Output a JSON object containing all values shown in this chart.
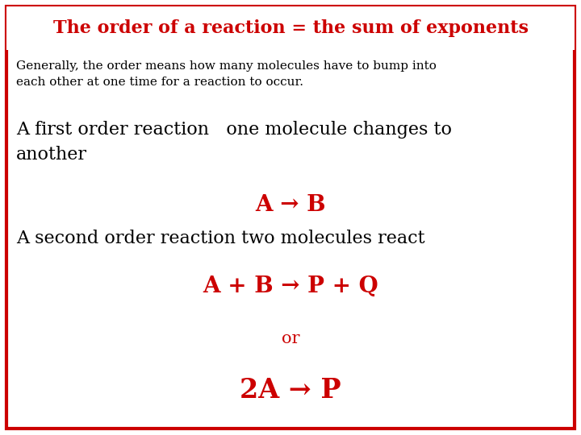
{
  "title": "The order of a reaction = the sum of exponents",
  "title_color": "#cc0000",
  "border_color": "#cc0000",
  "bg_color": "#ffffff",
  "subtitle": "Generally, the order means how many molecules have to bump into\neach other at one time for a reaction to occur.",
  "subtitle_color": "#000000",
  "line1": "A first order reaction   one molecule changes to\nanother",
  "line1_color": "#000000",
  "line2": "A → B",
  "line2_color": "#cc0000",
  "line3": "A second order reaction two molecules react",
  "line3_color": "#000000",
  "line4": "A + B → P + Q",
  "line4_color": "#cc0000",
  "line5": "or",
  "line5_color": "#cc0000",
  "line6": "2A → P",
  "line6_color": "#cc0000",
  "title_fontsize": 16,
  "subtitle_fontsize": 11,
  "line1_fontsize": 16,
  "line2_fontsize": 20,
  "line3_fontsize": 16,
  "line4_fontsize": 20,
  "line5_fontsize": 15,
  "line6_fontsize": 24
}
